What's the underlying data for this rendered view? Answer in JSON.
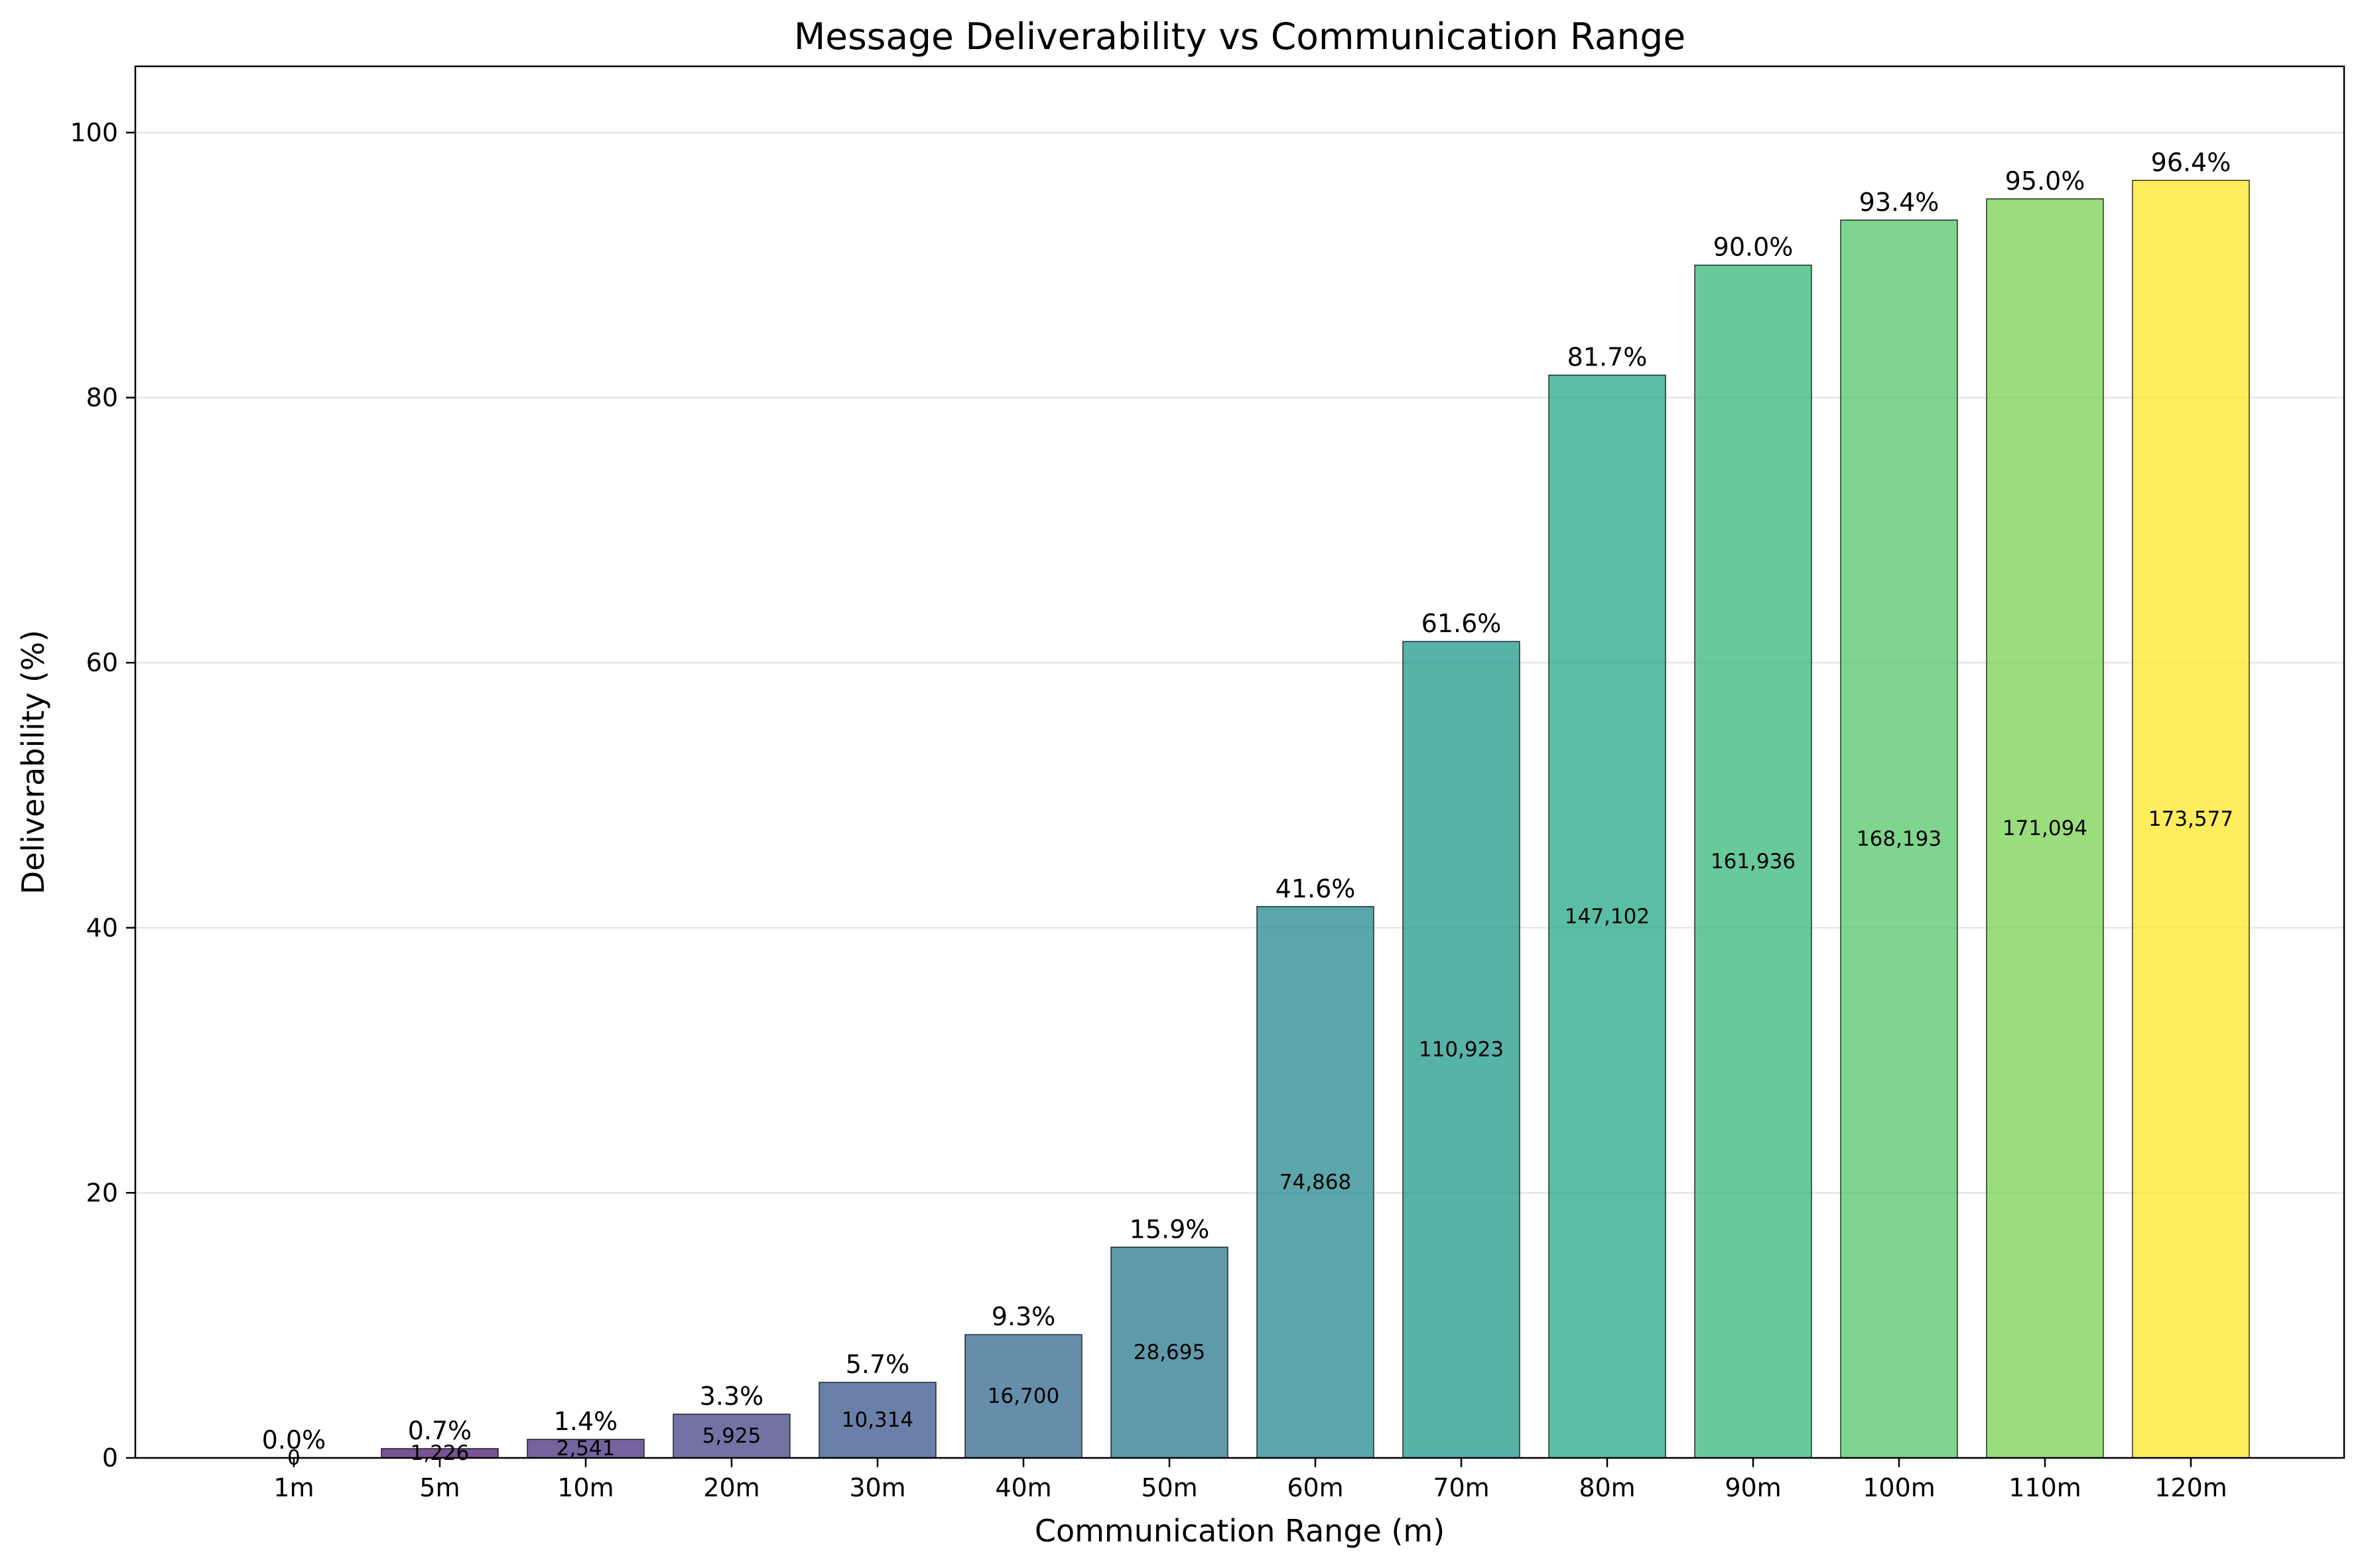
{
  "chart_data": {
    "type": "bar",
    "title": "Message Deliverability vs Communication Range",
    "xlabel": "Communication Range (m)",
    "ylabel": "Deliverability (%)",
    "ylim": [
      0,
      105
    ],
    "yticks": [
      0,
      20,
      40,
      60,
      80,
      100
    ],
    "grid": "horizontal",
    "categories": [
      "1m",
      "5m",
      "10m",
      "20m",
      "30m",
      "40m",
      "50m",
      "60m",
      "70m",
      "80m",
      "90m",
      "100m",
      "110m",
      "120m"
    ],
    "values": [
      0.0,
      0.7,
      1.4,
      3.3,
      5.7,
      9.3,
      15.9,
      41.6,
      61.6,
      81.7,
      90.0,
      93.4,
      95.0,
      96.4
    ],
    "value_labels": [
      "0.0%",
      "0.7%",
      "1.4%",
      "3.3%",
      "5.7%",
      "9.3%",
      "15.9%",
      "41.6%",
      "61.6%",
      "81.7%",
      "90.0%",
      "93.4%",
      "95.0%",
      "96.4%"
    ],
    "counts": [
      "0",
      "1,226",
      "2,541",
      "5,925",
      "10,314",
      "16,700",
      "28,695",
      "74,868",
      "110,923",
      "147,102",
      "161,936",
      "168,193",
      "171,094",
      "173,577"
    ],
    "colors": [
      "#440154",
      "#481a6c",
      "#472f7d",
      "#414487",
      "#39568c",
      "#31688e",
      "#2a788e",
      "#23888e",
      "#1f988b",
      "#22a884",
      "#35b779",
      "#54c568",
      "#7ad151",
      "#fde725"
    ]
  }
}
